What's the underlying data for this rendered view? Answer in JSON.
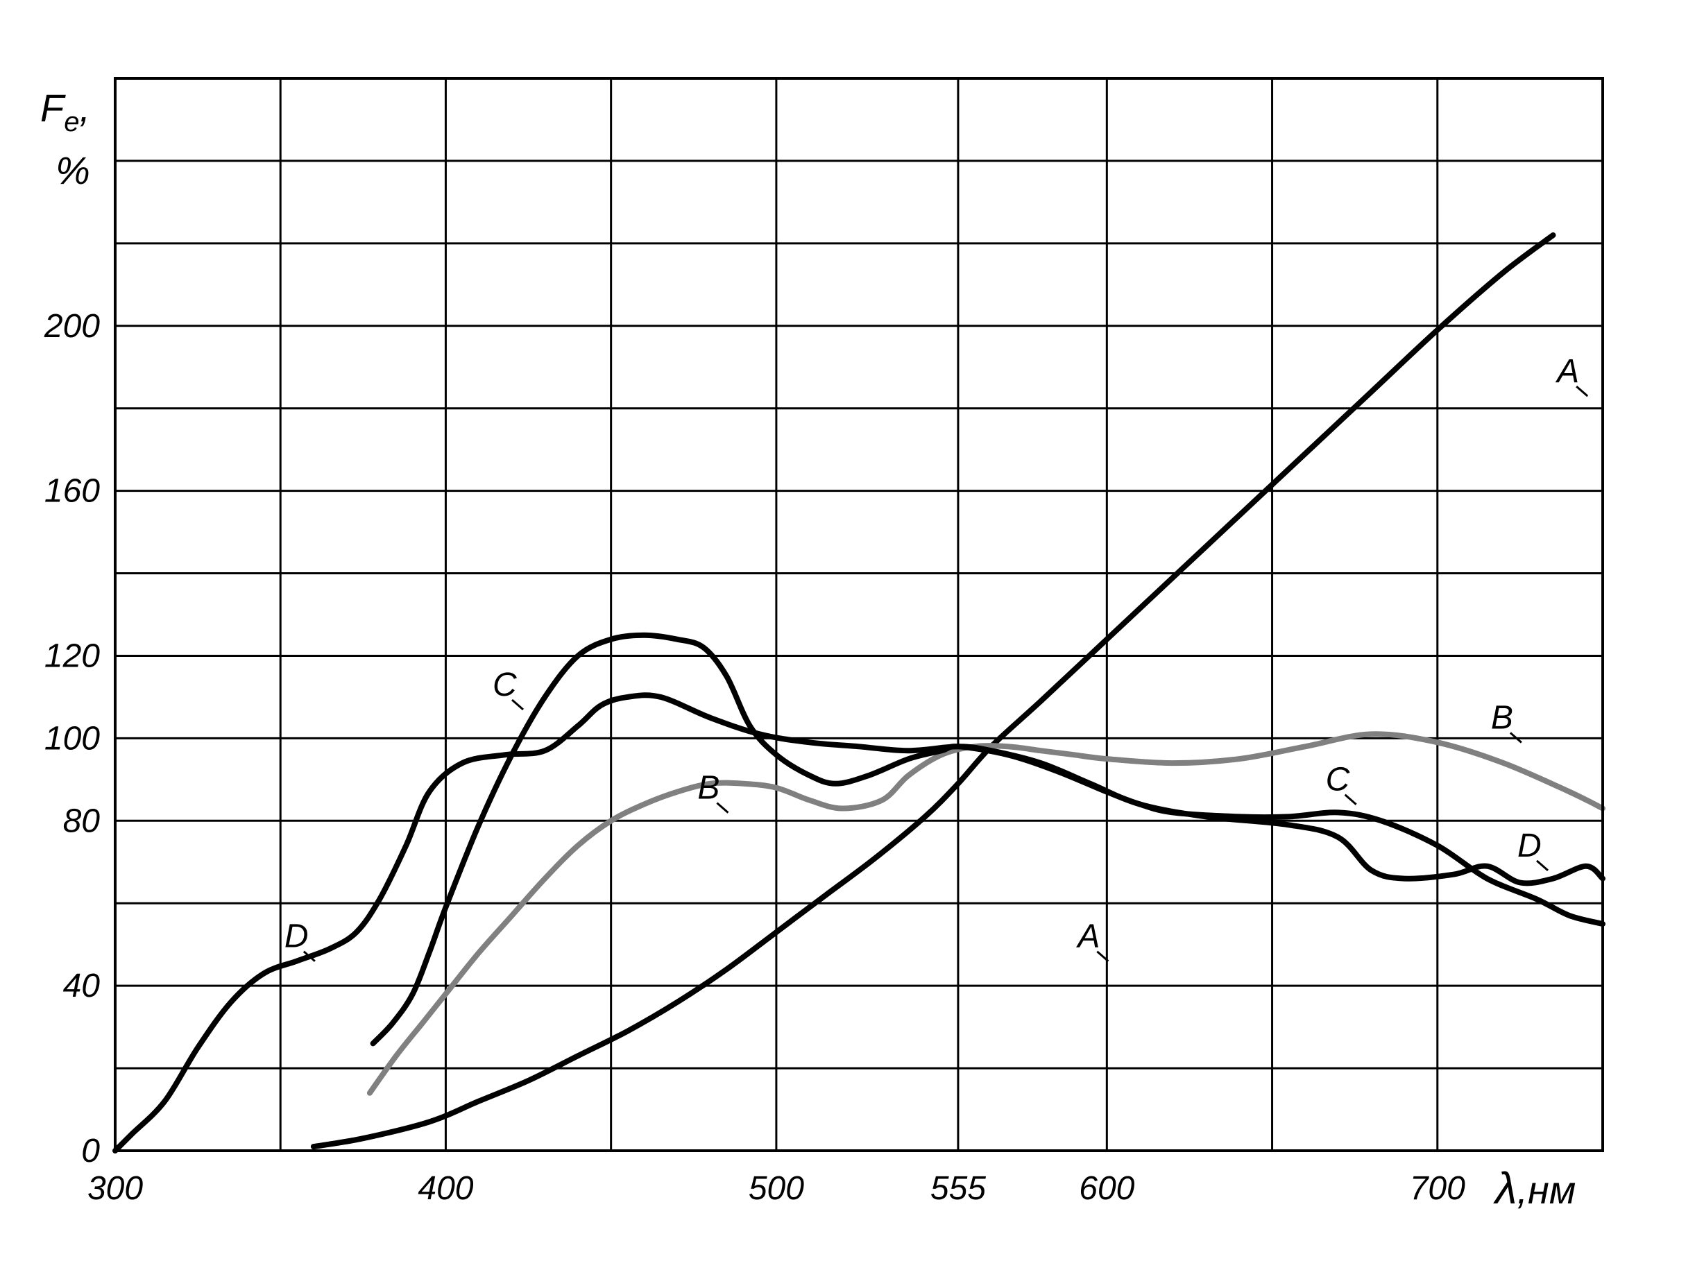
{
  "chart_data": {
    "type": "line",
    "ylabel_main": "F",
    "ylabel_sub": "e",
    "ylabel_suffix": ",",
    "ylabel_unit": "%",
    "xlabel_symbol": "λ",
    "xlabel_unit": ",нм",
    "xlim": [
      300,
      750
    ],
    "ylim": [
      0,
      260
    ],
    "x_ticks": [
      300,
      400,
      500,
      555,
      600,
      700
    ],
    "x_tick_labels": [
      "300",
      "400",
      "500",
      "555",
      "600",
      "700"
    ],
    "y_ticks": [
      0,
      40,
      80,
      100,
      120,
      160,
      200
    ],
    "y_tick_labels": [
      "0",
      "40",
      "80",
      "100",
      "120",
      "160",
      "200"
    ],
    "grid": true,
    "series": [
      {
        "name": "A",
        "color": "#000000",
        "label_points": [
          {
            "text": "A",
            "x": 600,
            "y": 50
          },
          {
            "text": "A",
            "x": 745,
            "y": 187
          }
        ],
        "points": [
          [
            360,
            1
          ],
          [
            375,
            3
          ],
          [
            395,
            7
          ],
          [
            410,
            12
          ],
          [
            425,
            17
          ],
          [
            440,
            23
          ],
          [
            455,
            29
          ],
          [
            470,
            36
          ],
          [
            485,
            44
          ],
          [
            500,
            53
          ],
          [
            515,
            62
          ],
          [
            530,
            71
          ],
          [
            545,
            81
          ],
          [
            555,
            89
          ],
          [
            565,
            98
          ],
          [
            580,
            109
          ],
          [
            600,
            124
          ],
          [
            620,
            139
          ],
          [
            640,
            154
          ],
          [
            660,
            169
          ],
          [
            680,
            184
          ],
          [
            700,
            199
          ],
          [
            720,
            213
          ],
          [
            735,
            222
          ]
        ]
      },
      {
        "name": "B",
        "color": "#808080",
        "label_points": [
          {
            "text": "B",
            "x": 485,
            "y": 86
          },
          {
            "text": "B",
            "x": 725,
            "y": 103
          }
        ],
        "points": [
          [
            377,
            14
          ],
          [
            385,
            23
          ],
          [
            393,
            31
          ],
          [
            400,
            38
          ],
          [
            410,
            48
          ],
          [
            420,
            57
          ],
          [
            430,
            66
          ],
          [
            440,
            74
          ],
          [
            450,
            80
          ],
          [
            460,
            84
          ],
          [
            470,
            87
          ],
          [
            480,
            89
          ],
          [
            490,
            89
          ],
          [
            500,
            88
          ],
          [
            510,
            85
          ],
          [
            520,
            83
          ],
          [
            532,
            85
          ],
          [
            540,
            91
          ],
          [
            550,
            96
          ],
          [
            560,
            98
          ],
          [
            570,
            98
          ],
          [
            580,
            97
          ],
          [
            590,
            96
          ],
          [
            600,
            95
          ],
          [
            620,
            94
          ],
          [
            640,
            95
          ],
          [
            660,
            98
          ],
          [
            680,
            101
          ],
          [
            700,
            99
          ],
          [
            720,
            94
          ],
          [
            740,
            87
          ],
          [
            750,
            83
          ]
        ]
      },
      {
        "name": "C",
        "color": "#000000",
        "label_points": [
          {
            "text": "C",
            "x": 423,
            "y": 111
          },
          {
            "text": "C",
            "x": 675,
            "y": 88
          }
        ],
        "points": [
          [
            378,
            26
          ],
          [
            384,
            31
          ],
          [
            390,
            38
          ],
          [
            395,
            48
          ],
          [
            400,
            59
          ],
          [
            410,
            79
          ],
          [
            420,
            96
          ],
          [
            430,
            110
          ],
          [
            440,
            120
          ],
          [
            450,
            124
          ],
          [
            460,
            125
          ],
          [
            470,
            124
          ],
          [
            478,
            122
          ],
          [
            485,
            115
          ],
          [
            492,
            103
          ],
          [
            500,
            96
          ],
          [
            510,
            91
          ],
          [
            518,
            89
          ],
          [
            528,
            91
          ],
          [
            540,
            95
          ],
          [
            550,
            97
          ],
          [
            555,
            98
          ],
          [
            570,
            96
          ],
          [
            585,
            92
          ],
          [
            600,
            87
          ],
          [
            610,
            84
          ],
          [
            620,
            82
          ],
          [
            640,
            81
          ],
          [
            655,
            81
          ],
          [
            670,
            82
          ],
          [
            683,
            80
          ],
          [
            700,
            74
          ],
          [
            715,
            66
          ],
          [
            730,
            61
          ],
          [
            740,
            57
          ],
          [
            750,
            55
          ]
        ]
      },
      {
        "name": "D",
        "color": "#000000",
        "label_points": [
          {
            "text": "D",
            "x": 360,
            "y": 50
          },
          {
            "text": "D",
            "x": 733,
            "y": 72
          }
        ],
        "points": [
          [
            300,
            0
          ],
          [
            305,
            4
          ],
          [
            315,
            12
          ],
          [
            325,
            25
          ],
          [
            335,
            36
          ],
          [
            345,
            43
          ],
          [
            355,
            46
          ],
          [
            365,
            49
          ],
          [
            373,
            53
          ],
          [
            380,
            61
          ],
          [
            388,
            74
          ],
          [
            395,
            87
          ],
          [
            405,
            94
          ],
          [
            418,
            96
          ],
          [
            430,
            97
          ],
          [
            440,
            103
          ],
          [
            447,
            108
          ],
          [
            455,
            110
          ],
          [
            465,
            110
          ],
          [
            480,
            105
          ],
          [
            495,
            101
          ],
          [
            510,
            99
          ],
          [
            525,
            98
          ],
          [
            540,
            97
          ],
          [
            555,
            98
          ],
          [
            565,
            97
          ],
          [
            580,
            94
          ],
          [
            595,
            89
          ],
          [
            610,
            84
          ],
          [
            630,
            81
          ],
          [
            655,
            79
          ],
          [
            670,
            76
          ],
          [
            680,
            68
          ],
          [
            690,
            66
          ],
          [
            705,
            67
          ],
          [
            715,
            69
          ],
          [
            725,
            65
          ],
          [
            735,
            66
          ],
          [
            745,
            69
          ],
          [
            750,
            66
          ]
        ]
      }
    ]
  }
}
